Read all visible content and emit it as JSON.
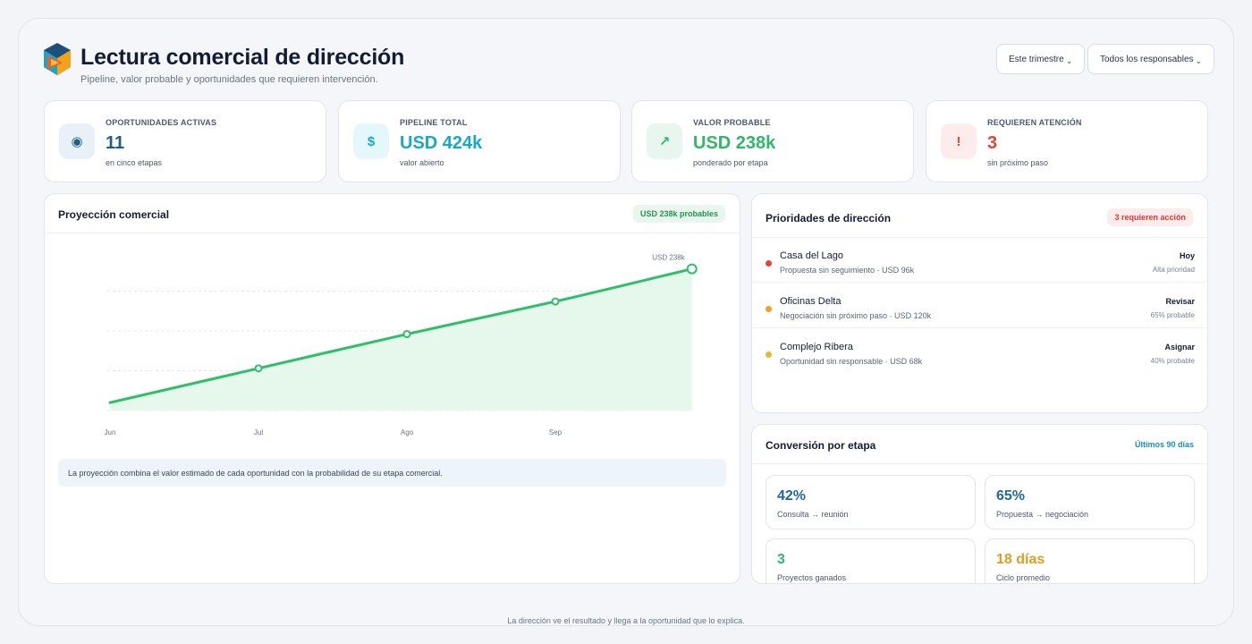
{
  "header": {
    "title": "Lectura comercial de dirección",
    "subtitle": "Pipeline, valor probable y oportunidades que requieren intervención.",
    "filters": [
      {
        "label": "Este trimestre",
        "chevron": "⌄"
      },
      {
        "label": "Todos los responsables",
        "chevron": "⌄"
      }
    ]
  },
  "kpis": [
    {
      "icon": "target-icon",
      "glyph": "◉",
      "label": "Oportunidades activas",
      "value": "11",
      "note": "en cinco etapas",
      "color": "#1f5f86",
      "bg": "#e8f1f8"
    },
    {
      "icon": "dollar-icon",
      "glyph": "$",
      "label": "Pipeline total",
      "value": "USD 424k",
      "note": "valor abierto",
      "color": "#1aa9c4",
      "bg": "#e4f7fa"
    },
    {
      "icon": "trend-up-icon",
      "glyph": "↗",
      "label": "Valor probable",
      "value": "USD 238k",
      "note": "ponderado por etapa",
      "color": "#2fb86a",
      "bg": "#e7f6ee"
    },
    {
      "icon": "alert-icon",
      "glyph": "!",
      "label": "Requieren atención",
      "value": "3",
      "note": "sin próximo paso",
      "color": "#e0453a",
      "bg": "#fdeceb"
    }
  ],
  "projection": {
    "title": "Proyección comercial",
    "badge": "USD 238k probables",
    "note": "La proyección combina el valor estimado de cada oportunidad con la probabilidad de su etapa comercial."
  },
  "chart_data": {
    "type": "area",
    "x_ticks": [
      "Jun",
      "Jul",
      "Ago",
      "Sep"
    ],
    "points": [
      {
        "x": 0.0,
        "y": 10
      },
      {
        "x": 1.0,
        "y": 53
      },
      {
        "x": 2.0,
        "y": 96
      },
      {
        "x": 3.0,
        "y": 137
      },
      {
        "x": 3.92,
        "y": 178
      }
    ],
    "markers": [
      1,
      2,
      3,
      4
    ],
    "end_label": "USD 238k",
    "ylim": [
      0,
      200
    ],
    "grid": true,
    "color": "#2fbf6a",
    "fill": "#e6f7ec"
  },
  "priorities": {
    "title": "Prioridades de dirección",
    "badge": "3 requieren acción",
    "items": [
      {
        "name": "Casa del Lago",
        "desc": "Propuesta sin seguimiento · USD 96k",
        "action": "Hoy",
        "sub": "Alta prioridad",
        "color": "#e0453a"
      },
      {
        "name": "Oficinas Delta",
        "desc": "Negociación sin próximo paso · USD 120k",
        "action": "Revisar",
        "sub": "65% probable",
        "color": "#f0a02a"
      },
      {
        "name": "Complejo Ribera",
        "desc": "Oportunidad sin responsable · USD 68k",
        "action": "Asignar",
        "sub": "40% probable",
        "color": "#e8b83a"
      }
    ]
  },
  "conversion": {
    "title": "Conversión por etapa",
    "period": "Últimos 90 días",
    "metrics": [
      {
        "value": "42%",
        "label": "Consulta → reunión",
        "color": "#1f6a92"
      },
      {
        "value": "65%",
        "label": "Propuesta → negociación",
        "color": "#1f6a92"
      },
      {
        "value": "3",
        "label": "Proyectos ganados",
        "color": "#2fb86a"
      },
      {
        "value": "18 días",
        "label": "Ciclo promedio",
        "color": "#e39b22"
      }
    ]
  },
  "footer": "La dirección ve el resultado y llega a la oportunidad que lo explica."
}
